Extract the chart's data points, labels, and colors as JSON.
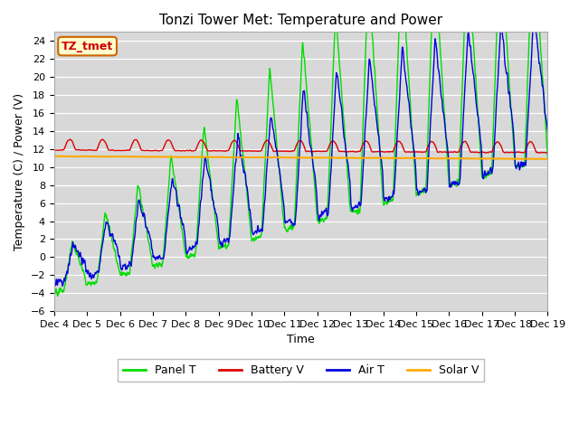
{
  "title": "Tonzi Tower Met: Temperature and Power",
  "xlabel": "Time",
  "ylabel": "Temperature (C) / Power (V)",
  "ylim": [
    -6,
    25
  ],
  "yticks": [
    -6,
    -4,
    -2,
    0,
    2,
    4,
    6,
    8,
    10,
    12,
    14,
    16,
    18,
    20,
    22,
    24
  ],
  "bg_color": "#d8d8d8",
  "fig_color": "#ffffff",
  "label_box": "TZ_tmet",
  "label_box_bg": "#ffffcc",
  "label_box_border": "#cc6600",
  "label_box_text": "#cc0000",
  "lines": {
    "panel_t": {
      "label": "Panel T",
      "color": "#00dd00",
      "lw": 1.0
    },
    "battery_v": {
      "label": "Battery V",
      "color": "#dd0000",
      "lw": 1.0
    },
    "air_t": {
      "label": "Air T",
      "color": "#0000dd",
      "lw": 1.0
    },
    "solar_v": {
      "label": "Solar V",
      "color": "#ffaa00",
      "lw": 1.5
    }
  },
  "xtick_labels": [
    "Dec 4",
    "Dec 5",
    "Dec 6",
    "Dec 7",
    "Dec 8",
    "Dec 9",
    "Dec 10",
    "Dec 11",
    "Dec 12",
    "Dec 13",
    "Dec 14",
    "Dec 15",
    "Dec 16",
    "Dec 17",
    "Dec 18",
    "Dec 19"
  ],
  "start_day": 4,
  "end_day": 19
}
